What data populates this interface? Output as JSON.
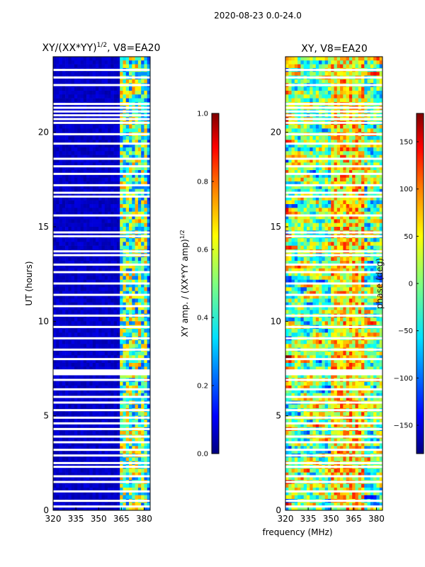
{
  "suptitle": "2020-08-23 0.0-24.0",
  "xlabel": "frequency (MHz)",
  "chart_data": [
    {
      "type": "heatmap",
      "title": "XY/(XX*YY)",
      "title_exponent": "1/2",
      "title_suffix": ", V8=EA20",
      "xlabel": "",
      "ylabel": "UT (hours)",
      "xlim": [
        320,
        384
      ],
      "ylim": [
        0,
        24
      ],
      "xticks": [
        320,
        335,
        350,
        365,
        380
      ],
      "yticks": [
        0,
        5,
        10,
        15,
        20
      ],
      "colorbar": {
        "label": "XY amp. / (XX*YY amp)",
        "label_exponent": "1/2",
        "range": [
          0.0,
          1.0
        ],
        "ticks": [
          "0.0",
          "0.2",
          "0.4",
          "0.6",
          "0.8",
          "1.0"
        ],
        "colormap": "jet"
      }
    },
    {
      "type": "heatmap",
      "title": "XY, V8=EA20",
      "xlabel": "frequency (MHz)",
      "ylabel": "",
      "xlim": [
        320,
        384
      ],
      "ylim": [
        0,
        24
      ],
      "xticks": [
        320,
        335,
        350,
        365,
        380
      ],
      "yticks": [
        0,
        5,
        10,
        15,
        20
      ],
      "colorbar": {
        "label": "phase (deg)",
        "range": [
          -180,
          180
        ],
        "ticks": [
          "-150",
          "-100",
          "-50",
          "0",
          "50",
          "100",
          "150"
        ],
        "colormap": "jet"
      }
    }
  ],
  "colors": {
    "jet": [
      "#00007f",
      "#0000ff",
      "#007fff",
      "#00ffff",
      "#7fff7f",
      "#ffff00",
      "#ff7f00",
      "#ff0000",
      "#7f0000"
    ]
  }
}
